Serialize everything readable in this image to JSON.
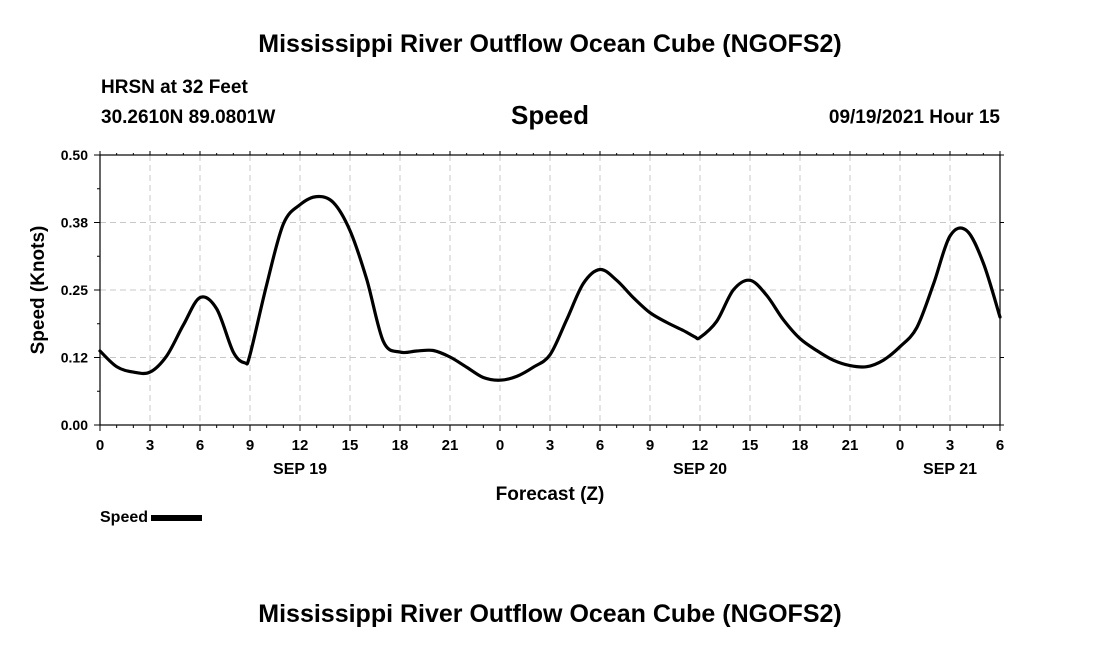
{
  "header": {
    "title": "Mississippi River Outflow Ocean Cube (NGOFS2)",
    "station": "HRSN at 32 Feet",
    "coords": "30.2610N  89.0801W",
    "variable": "Speed",
    "datetime": "09/19/2021 Hour 15"
  },
  "footer": {
    "title": "Mississippi River Outflow Ocean Cube (NGOFS2)"
  },
  "legend": {
    "label": "Speed",
    "color": "#000000"
  },
  "chart_data": {
    "type": "line",
    "xlabel": "Forecast (Z)",
    "ylabel": "Speed (Knots)",
    "ylim": [
      0,
      0.5
    ],
    "xlim": [
      0,
      54
    ],
    "grid": true,
    "legend_position": "bottom-left",
    "y_ticks": [
      "0.00",
      "0.12",
      "0.25",
      "0.38",
      "0.50"
    ],
    "y_tick_values": [
      0,
      0.125,
      0.25,
      0.375,
      0.5
    ],
    "x_tick_labels": [
      "0",
      "3",
      "6",
      "9",
      "12",
      "15",
      "18",
      "21",
      "0",
      "3",
      "6",
      "9",
      "12",
      "15",
      "18",
      "21",
      "0",
      "3",
      "6"
    ],
    "date_labels": [
      {
        "label": "SEP 19",
        "hour": 12
      },
      {
        "label": "SEP 20",
        "hour": 36
      },
      {
        "label": "SEP 21",
        "hour": 51
      }
    ],
    "series": [
      {
        "name": "Speed",
        "x": [
          0,
          1,
          2,
          3,
          4,
          5,
          6,
          7,
          8,
          8.7,
          9,
          10,
          11,
          12,
          13,
          14,
          15,
          16,
          17,
          18,
          19,
          20,
          21,
          22,
          23,
          24,
          25,
          26,
          27,
          28,
          29,
          30,
          31,
          32,
          33,
          34,
          35,
          35.7,
          36,
          37,
          38,
          39,
          40,
          41,
          42,
          43,
          44,
          45,
          46,
          47,
          48,
          49,
          50,
          51,
          52,
          53,
          54
        ],
        "values": [
          0.137,
          0.108,
          0.098,
          0.098,
          0.128,
          0.185,
          0.236,
          0.215,
          0.135,
          0.115,
          0.13,
          0.26,
          0.372,
          0.408,
          0.423,
          0.412,
          0.36,
          0.27,
          0.155,
          0.135,
          0.137,
          0.138,
          0.126,
          0.107,
          0.088,
          0.083,
          0.09,
          0.107,
          0.13,
          0.195,
          0.262,
          0.288,
          0.268,
          0.236,
          0.208,
          0.19,
          0.175,
          0.163,
          0.162,
          0.192,
          0.25,
          0.268,
          0.24,
          0.195,
          0.16,
          0.138,
          0.12,
          0.11,
          0.108,
          0.12,
          0.145,
          0.18,
          0.26,
          0.35,
          0.36,
          0.3,
          0.2
        ]
      }
    ]
  }
}
